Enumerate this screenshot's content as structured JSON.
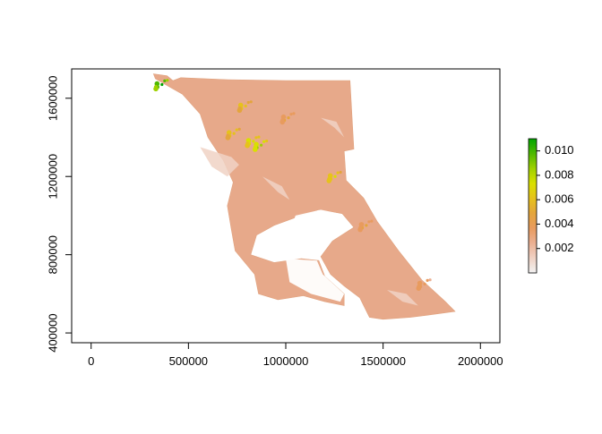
{
  "chart_data": {
    "type": "heatmap",
    "title": "",
    "xlabel": "",
    "ylabel": "",
    "xlim": [
      -100000,
      2100000
    ],
    "ylim": [
      350000,
      1750000
    ],
    "x_ticks": [
      {
        "value": 0,
        "label": "0"
      },
      {
        "value": 500000,
        "label": "500000"
      },
      {
        "value": 1000000,
        "label": "1000000"
      },
      {
        "value": 1500000,
        "label": "1500000"
      },
      {
        "value": 2000000,
        "label": "2000000"
      }
    ],
    "y_ticks": [
      {
        "value": 400000,
        "label": "400000"
      },
      {
        "value": 800000,
        "label": "800000"
      },
      {
        "value": 1200000,
        "label": "1200000"
      },
      {
        "value": 1600000,
        "label": "1600000"
      }
    ],
    "colorbar": {
      "range": [
        0,
        0.011
      ],
      "ticks": [
        {
          "value": 0.002,
          "label": "0.002"
        },
        {
          "value": 0.004,
          "label": "0.004"
        },
        {
          "value": 0.006,
          "label": "0.006"
        },
        {
          "value": 0.008,
          "label": "0.008"
        },
        {
          "value": 0.01,
          "label": "0.010"
        }
      ],
      "colors": [
        "#f2f2f2",
        "#f0d2c4",
        "#ebb093",
        "#e89b5e",
        "#e4a53c",
        "#e6c21b",
        "#d9e000",
        "#9fd100",
        "#4fb800",
        "#00a600"
      ]
    },
    "grid": false,
    "raster_outline_xy": [
      [
        320000,
        1725000
      ],
      [
        390000,
        1715000
      ],
      [
        420000,
        1690000
      ],
      [
        460000,
        1705000
      ],
      [
        700000,
        1695000
      ],
      [
        1000000,
        1690000
      ],
      [
        1330000,
        1690000
      ],
      [
        1340000,
        1510000
      ],
      [
        1350000,
        1340000
      ],
      [
        1300000,
        1330000
      ],
      [
        1310000,
        1180000
      ],
      [
        1400000,
        1090000
      ],
      [
        1470000,
        970000
      ],
      [
        1580000,
        820000
      ],
      [
        1700000,
        670000
      ],
      [
        1820000,
        560000
      ],
      [
        1870000,
        510000
      ],
      [
        1720000,
        490000
      ],
      [
        1640000,
        480000
      ],
      [
        1500000,
        470000
      ],
      [
        1430000,
        480000
      ],
      [
        1380000,
        580000
      ],
      [
        1300000,
        640000
      ],
      [
        1230000,
        700000
      ],
      [
        1180000,
        790000
      ],
      [
        1240000,
        870000
      ],
      [
        1350000,
        940000
      ],
      [
        1290000,
        1010000
      ],
      [
        1170000,
        1030000
      ],
      [
        1050000,
        990000
      ],
      [
        940000,
        950000
      ],
      [
        850000,
        900000
      ],
      [
        820000,
        800000
      ],
      [
        940000,
        760000
      ],
      [
        1080000,
        780000
      ],
      [
        1170000,
        770000
      ],
      [
        1200000,
        690000
      ],
      [
        1300000,
        600000
      ],
      [
        1300000,
        540000
      ],
      [
        1200000,
        560000
      ],
      [
        1090000,
        590000
      ],
      [
        960000,
        570000
      ],
      [
        860000,
        600000
      ],
      [
        840000,
        700000
      ],
      [
        740000,
        820000
      ],
      [
        720000,
        930000
      ],
      [
        700000,
        1050000
      ],
      [
        730000,
        1170000
      ],
      [
        680000,
        1280000
      ],
      [
        600000,
        1400000
      ],
      [
        560000,
        1520000
      ],
      [
        470000,
        1620000
      ],
      [
        400000,
        1660000
      ],
      [
        330000,
        1700000
      ]
    ],
    "water_patches_xy": [
      [
        [
          1050000,
          1000000
        ],
        [
          1180000,
          1030000
        ],
        [
          1280000,
          1010000
        ],
        [
          1330000,
          940000
        ],
        [
          1230000,
          880000
        ],
        [
          1100000,
          900000
        ],
        [
          1030000,
          950000
        ]
      ],
      [
        [
          1000000,
          780000
        ],
        [
          1160000,
          770000
        ],
        [
          1190000,
          700000
        ],
        [
          1300000,
          600000
        ],
        [
          1280000,
          560000
        ],
        [
          1130000,
          600000
        ],
        [
          1020000,
          660000
        ]
      ]
    ],
    "high_value_clusters_xy": [
      {
        "x": 350000,
        "y": 1670000,
        "value": 0.0105
      },
      {
        "x": 720000,
        "y": 1420000,
        "value": 0.0065
      },
      {
        "x": 820000,
        "y": 1380000,
        "value": 0.0075
      },
      {
        "x": 860000,
        "y": 1360000,
        "value": 0.0085
      },
      {
        "x": 1240000,
        "y": 1200000,
        "value": 0.007
      },
      {
        "x": 780000,
        "y": 1560000,
        "value": 0.006
      },
      {
        "x": 1000000,
        "y": 1500000,
        "value": 0.0045
      },
      {
        "x": 1400000,
        "y": 950000,
        "value": 0.0045
      },
      {
        "x": 1700000,
        "y": 650000,
        "value": 0.004
      }
    ]
  }
}
